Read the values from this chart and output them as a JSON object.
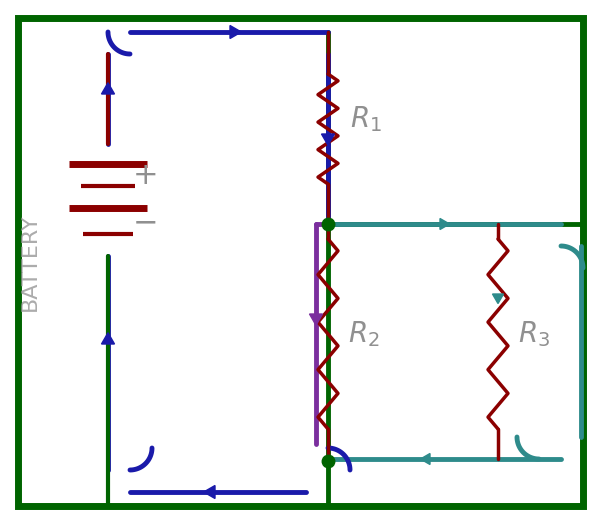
{
  "bg_color": "#ffffff",
  "blue_color": "#1a1aaa",
  "dark_red_color": "#8b0000",
  "green_color": "#006400",
  "teal_color": "#2e8b8b",
  "purple_color": "#7b2f9e",
  "gray_color": "#909090",
  "battery_label": "BATTERY",
  "lw_wire": 3.5,
  "lw_resistor": 2.5,
  "lw_border": 5.0
}
